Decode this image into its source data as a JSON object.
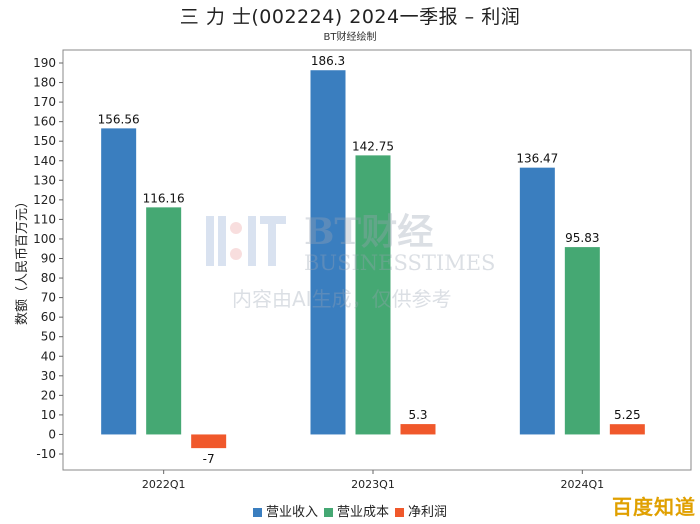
{
  "title": "三 力 士(002224) 2024一季报 – 利润",
  "subtitle": "BT财经绘制",
  "chart_data": {
    "type": "bar",
    "categories": [
      "2022Q1",
      "2023Q1",
      "2024Q1"
    ],
    "series": [
      {
        "name": "营业收入",
        "values": [
          156.56,
          186.3,
          136.47
        ],
        "labels": [
          "156.56",
          "186.3",
          "136.47"
        ],
        "color": "#3a7ebf"
      },
      {
        "name": "营业成本",
        "values": [
          116.16,
          142.75,
          95.83
        ],
        "labels": [
          "116.16",
          "142.75",
          "95.83"
        ],
        "color": "#45a873"
      },
      {
        "name": "净利润",
        "values": [
          -7,
          5.3,
          5.25
        ],
        "labels": [
          "-7",
          "5.3",
          "5.25"
        ],
        "color": "#f0582b"
      }
    ],
    "ylabel": "数额（人民币百万元）",
    "xlabel": "",
    "ylim": [
      -10,
      195
    ],
    "yticks": [
      -10,
      0,
      10,
      20,
      30,
      40,
      50,
      60,
      70,
      80,
      90,
      100,
      110,
      120,
      130,
      140,
      150,
      160,
      170,
      180,
      190
    ],
    "grid": false,
    "legend": "bottom"
  },
  "watermark": {
    "brand": "BT财经",
    "brand_en": "BUSINESSTIMES",
    "note": "内容由AI生成，仅供参考"
  },
  "corner_logo": "百度知道"
}
